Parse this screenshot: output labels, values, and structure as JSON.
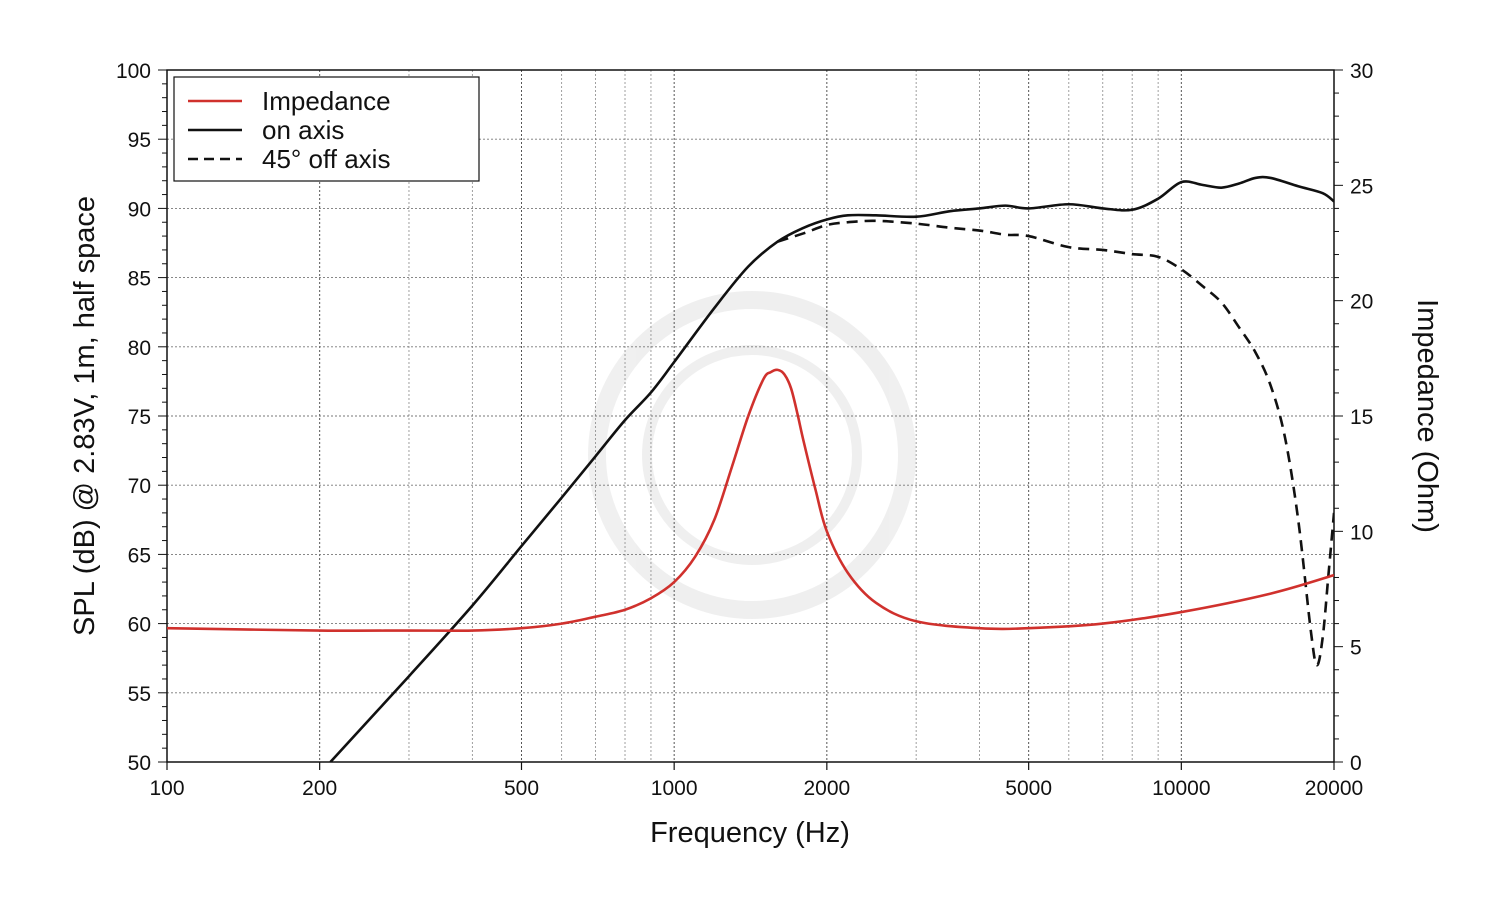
{
  "chart_data": {
    "type": "line",
    "title": "",
    "xlabel": "Frequency (Hz)",
    "ylabel_left": "SPL (dB) @ 2.83V, 1m, half space",
    "ylabel_right": "Impedance (Ohm)",
    "xscale": "log",
    "xlim": [
      100,
      20000
    ],
    "ylim_left": [
      50,
      100
    ],
    "ylim_right": [
      0,
      30
    ],
    "grid": true,
    "legend_position": "top-left",
    "x_tick_labels": [
      "100",
      "200",
      "500",
      "1000",
      "2000",
      "5000",
      "10000",
      "20000"
    ],
    "y_left_tick_labels": [
      "50",
      "55",
      "60",
      "65",
      "70",
      "75",
      "80",
      "85",
      "90",
      "95",
      "100"
    ],
    "y_right_tick_labels": [
      "0",
      "5",
      "10",
      "15",
      "20",
      "25",
      "30"
    ],
    "legend": [
      {
        "label": "Impedance",
        "color": "#d0312d",
        "style": "solid"
      },
      {
        "label": "on axis",
        "color": "#111111",
        "style": "solid"
      },
      {
        "label": "45° off axis",
        "color": "#111111",
        "style": "dashed"
      }
    ],
    "series": [
      {
        "name": "Impedance",
        "axis": "right",
        "color": "#d0312d",
        "dash": "solid",
        "x": [
          100,
          200,
          300,
          400,
          500,
          600,
          700,
          800,
          900,
          1000,
          1100,
          1200,
          1300,
          1400,
          1500,
          1550,
          1600,
          1650,
          1700,
          1750,
          1800,
          1900,
          2000,
          2200,
          2500,
          3000,
          4000,
          5000,
          7000,
          10000,
          15000,
          20000
        ],
        "y": [
          5.8,
          5.7,
          5.7,
          5.7,
          5.8,
          6.0,
          6.3,
          6.6,
          7.1,
          7.8,
          8.9,
          10.5,
          12.8,
          15.0,
          16.6,
          16.9,
          17.0,
          16.8,
          16.2,
          15.1,
          13.9,
          11.8,
          10.0,
          8.2,
          6.9,
          6.1,
          5.8,
          5.8,
          6.0,
          6.5,
          7.3,
          8.1
        ]
      },
      {
        "name": "on axis",
        "axis": "left",
        "color": "#111111",
        "dash": "solid",
        "x": [
          210,
          300,
          400,
          500,
          600,
          700,
          800,
          900,
          1000,
          1200,
          1400,
          1600,
          1800,
          2000,
          2200,
          2500,
          3000,
          3500,
          4000,
          4500,
          5000,
          6000,
          7000,
          8000,
          9000,
          10000,
          11000,
          12000,
          13000,
          14000,
          15000,
          17000,
          19000,
          20000
        ],
        "y": [
          50,
          56.2,
          61.3,
          65.6,
          69.1,
          72.1,
          74.7,
          76.7,
          78.9,
          82.8,
          85.8,
          87.6,
          88.6,
          89.2,
          89.5,
          89.5,
          89.4,
          89.8,
          90.0,
          90.2,
          90.0,
          90.3,
          90.0,
          89.9,
          90.7,
          91.9,
          91.7,
          91.5,
          91.8,
          92.2,
          92.2,
          91.6,
          91.1,
          90.5
        ]
      },
      {
        "name": "45° off axis",
        "axis": "left",
        "color": "#111111",
        "dash": "dashed",
        "x": [
          1600,
          1800,
          2000,
          2200,
          2500,
          3000,
          3500,
          4000,
          4500,
          5000,
          6000,
          7000,
          8000,
          9000,
          10000,
          11000,
          12000,
          13000,
          14000,
          15000,
          16000,
          17000,
          18000,
          18500,
          19000,
          19500,
          20000
        ],
        "y": [
          87.6,
          88.2,
          88.8,
          89.0,
          89.1,
          88.9,
          88.6,
          88.4,
          88.1,
          88.0,
          87.2,
          87.0,
          86.7,
          86.5,
          85.6,
          84.4,
          83.2,
          81.4,
          79.6,
          77.2,
          73.5,
          67.5,
          59.5,
          57.0,
          59.0,
          63.5,
          68.0
        ]
      }
    ]
  }
}
